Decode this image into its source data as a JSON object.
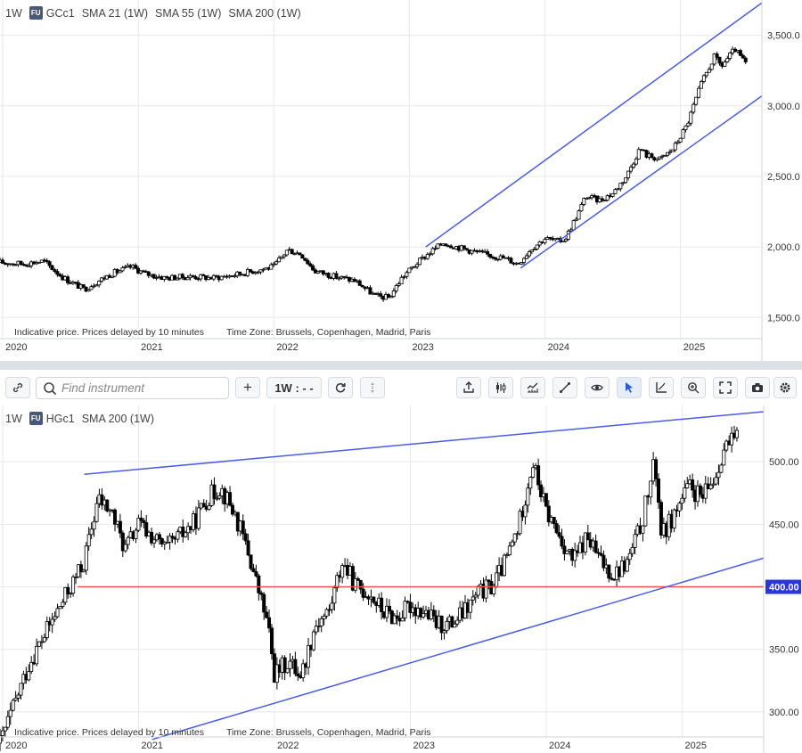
{
  "panel1": {
    "interval": "1W",
    "badge": "FU",
    "symbol": "GCc1",
    "indicators": [
      "SMA 21 (1W)",
      "SMA 55 (1W)",
      "SMA 200 (1W)"
    ],
    "notice": "Indicative price. Prices delayed by 10 minutes",
    "timezone": "Time Zone: Brussels, Copenhagen, Madrid, Paris"
  },
  "panel2": {
    "interval": "1W",
    "badge": "FU",
    "symbol": "HGc1",
    "indicators": [
      "SMA 200 (1W)"
    ],
    "notice": "Indicative price. Prices delayed by 10 minutes",
    "timezone": "Time Zone: Brussels, Copenhagen, Madrid, Paris"
  },
  "toolbar": {
    "search_placeholder": "Find instrument",
    "interval_label": "1W : - -",
    "add_label": "+"
  },
  "colors": {
    "up_candle": "#ffffff",
    "down_candle": "#000000",
    "trendline": "#4a5ce6",
    "horizontal_line": "#f05050",
    "price_tag": "#2b35d8",
    "grid": "#e8e8e8"
  },
  "chart_data": [
    {
      "type": "candlestick",
      "symbol": "GCc1",
      "interval": "1W",
      "x_axis_labels": [
        "2020",
        "2021",
        "2022",
        "2023",
        "2024",
        "2025"
      ],
      "y_ticks": [
        "1,500.0",
        "2,000.0",
        "2,500.0",
        "3,000.0",
        "3,500.0"
      ],
      "ylim": [
        1350,
        3750
      ],
      "xlim": [
        2019.98,
        2025.6
      ],
      "price_path": [
        [
          2019.98,
          1890
        ],
        [
          2020.15,
          1880
        ],
        [
          2020.3,
          1900
        ],
        [
          2020.45,
          1780
        ],
        [
          2020.6,
          1700
        ],
        [
          2020.8,
          1810
        ],
        [
          2020.95,
          1860
        ],
        [
          2021.05,
          1810
        ],
        [
          2021.2,
          1780
        ],
        [
          2021.4,
          1790
        ],
        [
          2021.55,
          1780
        ],
        [
          2021.7,
          1800
        ],
        [
          2021.85,
          1830
        ],
        [
          2022.0,
          1860
        ],
        [
          2022.1,
          1980
        ],
        [
          2022.2,
          1950
        ],
        [
          2022.3,
          1830
        ],
        [
          2022.45,
          1790
        ],
        [
          2022.6,
          1760
        ],
        [
          2022.75,
          1650
        ],
        [
          2022.85,
          1640
        ],
        [
          2022.95,
          1790
        ],
        [
          2023.05,
          1880
        ],
        [
          2023.15,
          1960
        ],
        [
          2023.25,
          2030
        ],
        [
          2023.35,
          2000
        ],
        [
          2023.5,
          1960
        ],
        [
          2023.6,
          1940
        ],
        [
          2023.7,
          1920
        ],
        [
          2023.8,
          1880
        ],
        [
          2023.9,
          1990
        ],
        [
          2024.0,
          2060
        ],
        [
          2024.1,
          2040
        ],
        [
          2024.15,
          2060
        ],
        [
          2024.25,
          2250
        ],
        [
          2024.3,
          2360
        ],
        [
          2024.4,
          2330
        ],
        [
          2024.5,
          2380
        ],
        [
          2024.6,
          2500
        ],
        [
          2024.7,
          2700
        ],
        [
          2024.75,
          2650
        ],
        [
          2024.85,
          2620
        ],
        [
          2024.95,
          2700
        ],
        [
          2025.05,
          2870
        ],
        [
          2025.15,
          3150
        ],
        [
          2025.25,
          3350
        ],
        [
          2025.3,
          3280
        ],
        [
          2025.4,
          3400
        ],
        [
          2025.48,
          3300
        ]
      ],
      "trendlines": [
        {
          "label": "channel upper",
          "from": [
            2023.12,
            2000
          ],
          "to": [
            2025.6,
            3730
          ]
        },
        {
          "label": "channel lower",
          "from": [
            2023.82,
            1850
          ],
          "to": [
            2025.6,
            3070
          ]
        }
      ]
    },
    {
      "type": "candlestick",
      "symbol": "HGc1",
      "interval": "1W",
      "x_axis_labels": [
        "2020",
        "2021",
        "2022",
        "2023",
        "2024",
        "2025"
      ],
      "y_ticks": [
        "300.00",
        "350.00",
        "400.00",
        "450.00",
        "500.00"
      ],
      "price_tag": "400.00",
      "ylim": [
        280,
        545
      ],
      "xlim": [
        2019.98,
        2025.6
      ],
      "price_path": [
        [
          2019.98,
          275
        ],
        [
          2020.1,
          310
        ],
        [
          2020.2,
          340
        ],
        [
          2020.35,
          370
        ],
        [
          2020.5,
          400
        ],
        [
          2020.6,
          420
        ],
        [
          2020.7,
          470
        ],
        [
          2020.8,
          460
        ],
        [
          2020.9,
          430
        ],
        [
          2021.0,
          450
        ],
        [
          2021.1,
          440
        ],
        [
          2021.2,
          430
        ],
        [
          2021.3,
          440
        ],
        [
          2021.4,
          450
        ],
        [
          2021.5,
          470
        ],
        [
          2021.6,
          480
        ],
        [
          2021.7,
          460
        ],
        [
          2021.8,
          430
        ],
        [
          2021.95,
          370
        ],
        [
          2022.0,
          330
        ],
        [
          2022.1,
          340
        ],
        [
          2022.2,
          330
        ],
        [
          2022.3,
          370
        ],
        [
          2022.4,
          380
        ],
        [
          2022.5,
          420
        ],
        [
          2022.6,
          400
        ],
        [
          2022.7,
          395
        ],
        [
          2022.8,
          380
        ],
        [
          2022.9,
          375
        ],
        [
          2023.0,
          385
        ],
        [
          2023.1,
          380
        ],
        [
          2023.2,
          370
        ],
        [
          2023.3,
          370
        ],
        [
          2023.4,
          380
        ],
        [
          2023.5,
          395
        ],
        [
          2023.6,
          400
        ],
        [
          2023.7,
          420
        ],
        [
          2023.8,
          450
        ],
        [
          2023.9,
          500
        ],
        [
          2024.0,
          460
        ],
        [
          2024.1,
          440
        ],
        [
          2024.2,
          420
        ],
        [
          2024.3,
          440
        ],
        [
          2024.4,
          420
        ],
        [
          2024.5,
          410
        ],
        [
          2024.6,
          420
        ],
        [
          2024.7,
          450
        ],
        [
          2024.8,
          500
        ],
        [
          2024.85,
          440
        ],
        [
          2024.95,
          460
        ],
        [
          2025.05,
          480
        ],
        [
          2025.15,
          470
        ],
        [
          2025.25,
          490
        ],
        [
          2025.3,
          510
        ],
        [
          2025.4,
          518
        ]
      ],
      "trendlines": [
        {
          "label": "upper line",
          "from": [
            2020.6,
            490
          ],
          "to": [
            2025.6,
            540
          ]
        },
        {
          "label": "lower line",
          "from": [
            2021.1,
            278
          ],
          "to": [
            2025.6,
            423
          ]
        }
      ],
      "horizontal_lines": [
        {
          "label": "400.00",
          "y": 400,
          "from": 2020.55
        }
      ]
    }
  ]
}
